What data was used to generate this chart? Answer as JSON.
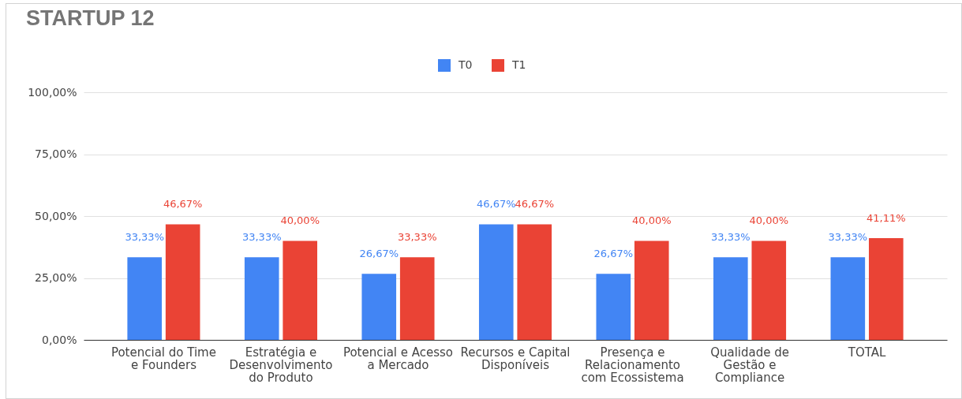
{
  "chart_data": {
    "type": "bar",
    "title": "STARTUP 12",
    "categories": [
      "Potencial do Time e Founders",
      "Estratégia e Desenvolvimento do Produto",
      "Potencial e Acesso a Mercado",
      "Recursos e Capital Disponíveis",
      "Presença e Relacionamento com Ecossistema",
      "Qualidade de Gestão e Compliance",
      "TOTAL"
    ],
    "series": [
      {
        "name": "T0",
        "color": "#4285f4",
        "values": [
          33.33,
          33.33,
          26.67,
          46.67,
          26.67,
          33.33,
          33.33
        ],
        "value_labels": [
          "33,33%",
          "33,33%",
          "26,67%",
          "46,67%",
          "26,67%",
          "33,33%",
          "33,33%"
        ]
      },
      {
        "name": "T1",
        "color": "#ea4335",
        "values": [
          46.67,
          40.0,
          33.33,
          46.67,
          40.0,
          40.0,
          41.11
        ],
        "value_labels": [
          "46,67%",
          "40,00%",
          "33,33%",
          "46,67%",
          "40,00%",
          "40,00%",
          "41,11%"
        ]
      }
    ],
    "ylim": [
      0,
      100
    ],
    "yticks": [
      {
        "value": 0,
        "label": "0,00%"
      },
      {
        "value": 25,
        "label": "25,00%"
      },
      {
        "value": 50,
        "label": "50,00%"
      },
      {
        "value": 75,
        "label": "75,00%"
      },
      {
        "value": 100,
        "label": "100,00%"
      }
    ],
    "grid": "y",
    "legend": "top"
  }
}
